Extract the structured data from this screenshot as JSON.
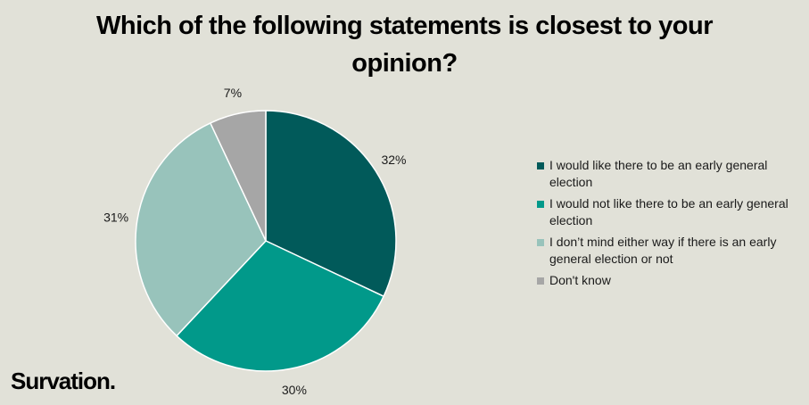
{
  "chart_data": {
    "type": "pie",
    "title_lines": [
      "Which of the following statements is closest to your",
      "opinion?"
    ],
    "slices": [
      {
        "label": "I would like there to be an early general election",
        "value": 32,
        "value_label": "32%",
        "color": "#015a5a"
      },
      {
        "label": "I would not like there to be an early general election",
        "value": 30,
        "value_label": "30%",
        "color": "#01998a"
      },
      {
        "label": "I don’t mind either way if there is an early general election or not",
        "value": 31,
        "value_label": "31%",
        "color": "#98c3bb"
      },
      {
        "label": "Don't know",
        "value": 7,
        "value_label": "7%",
        "color": "#a6a6a6"
      }
    ],
    "legend_position": "right"
  },
  "brand": {
    "logo_text": "Survation."
  }
}
